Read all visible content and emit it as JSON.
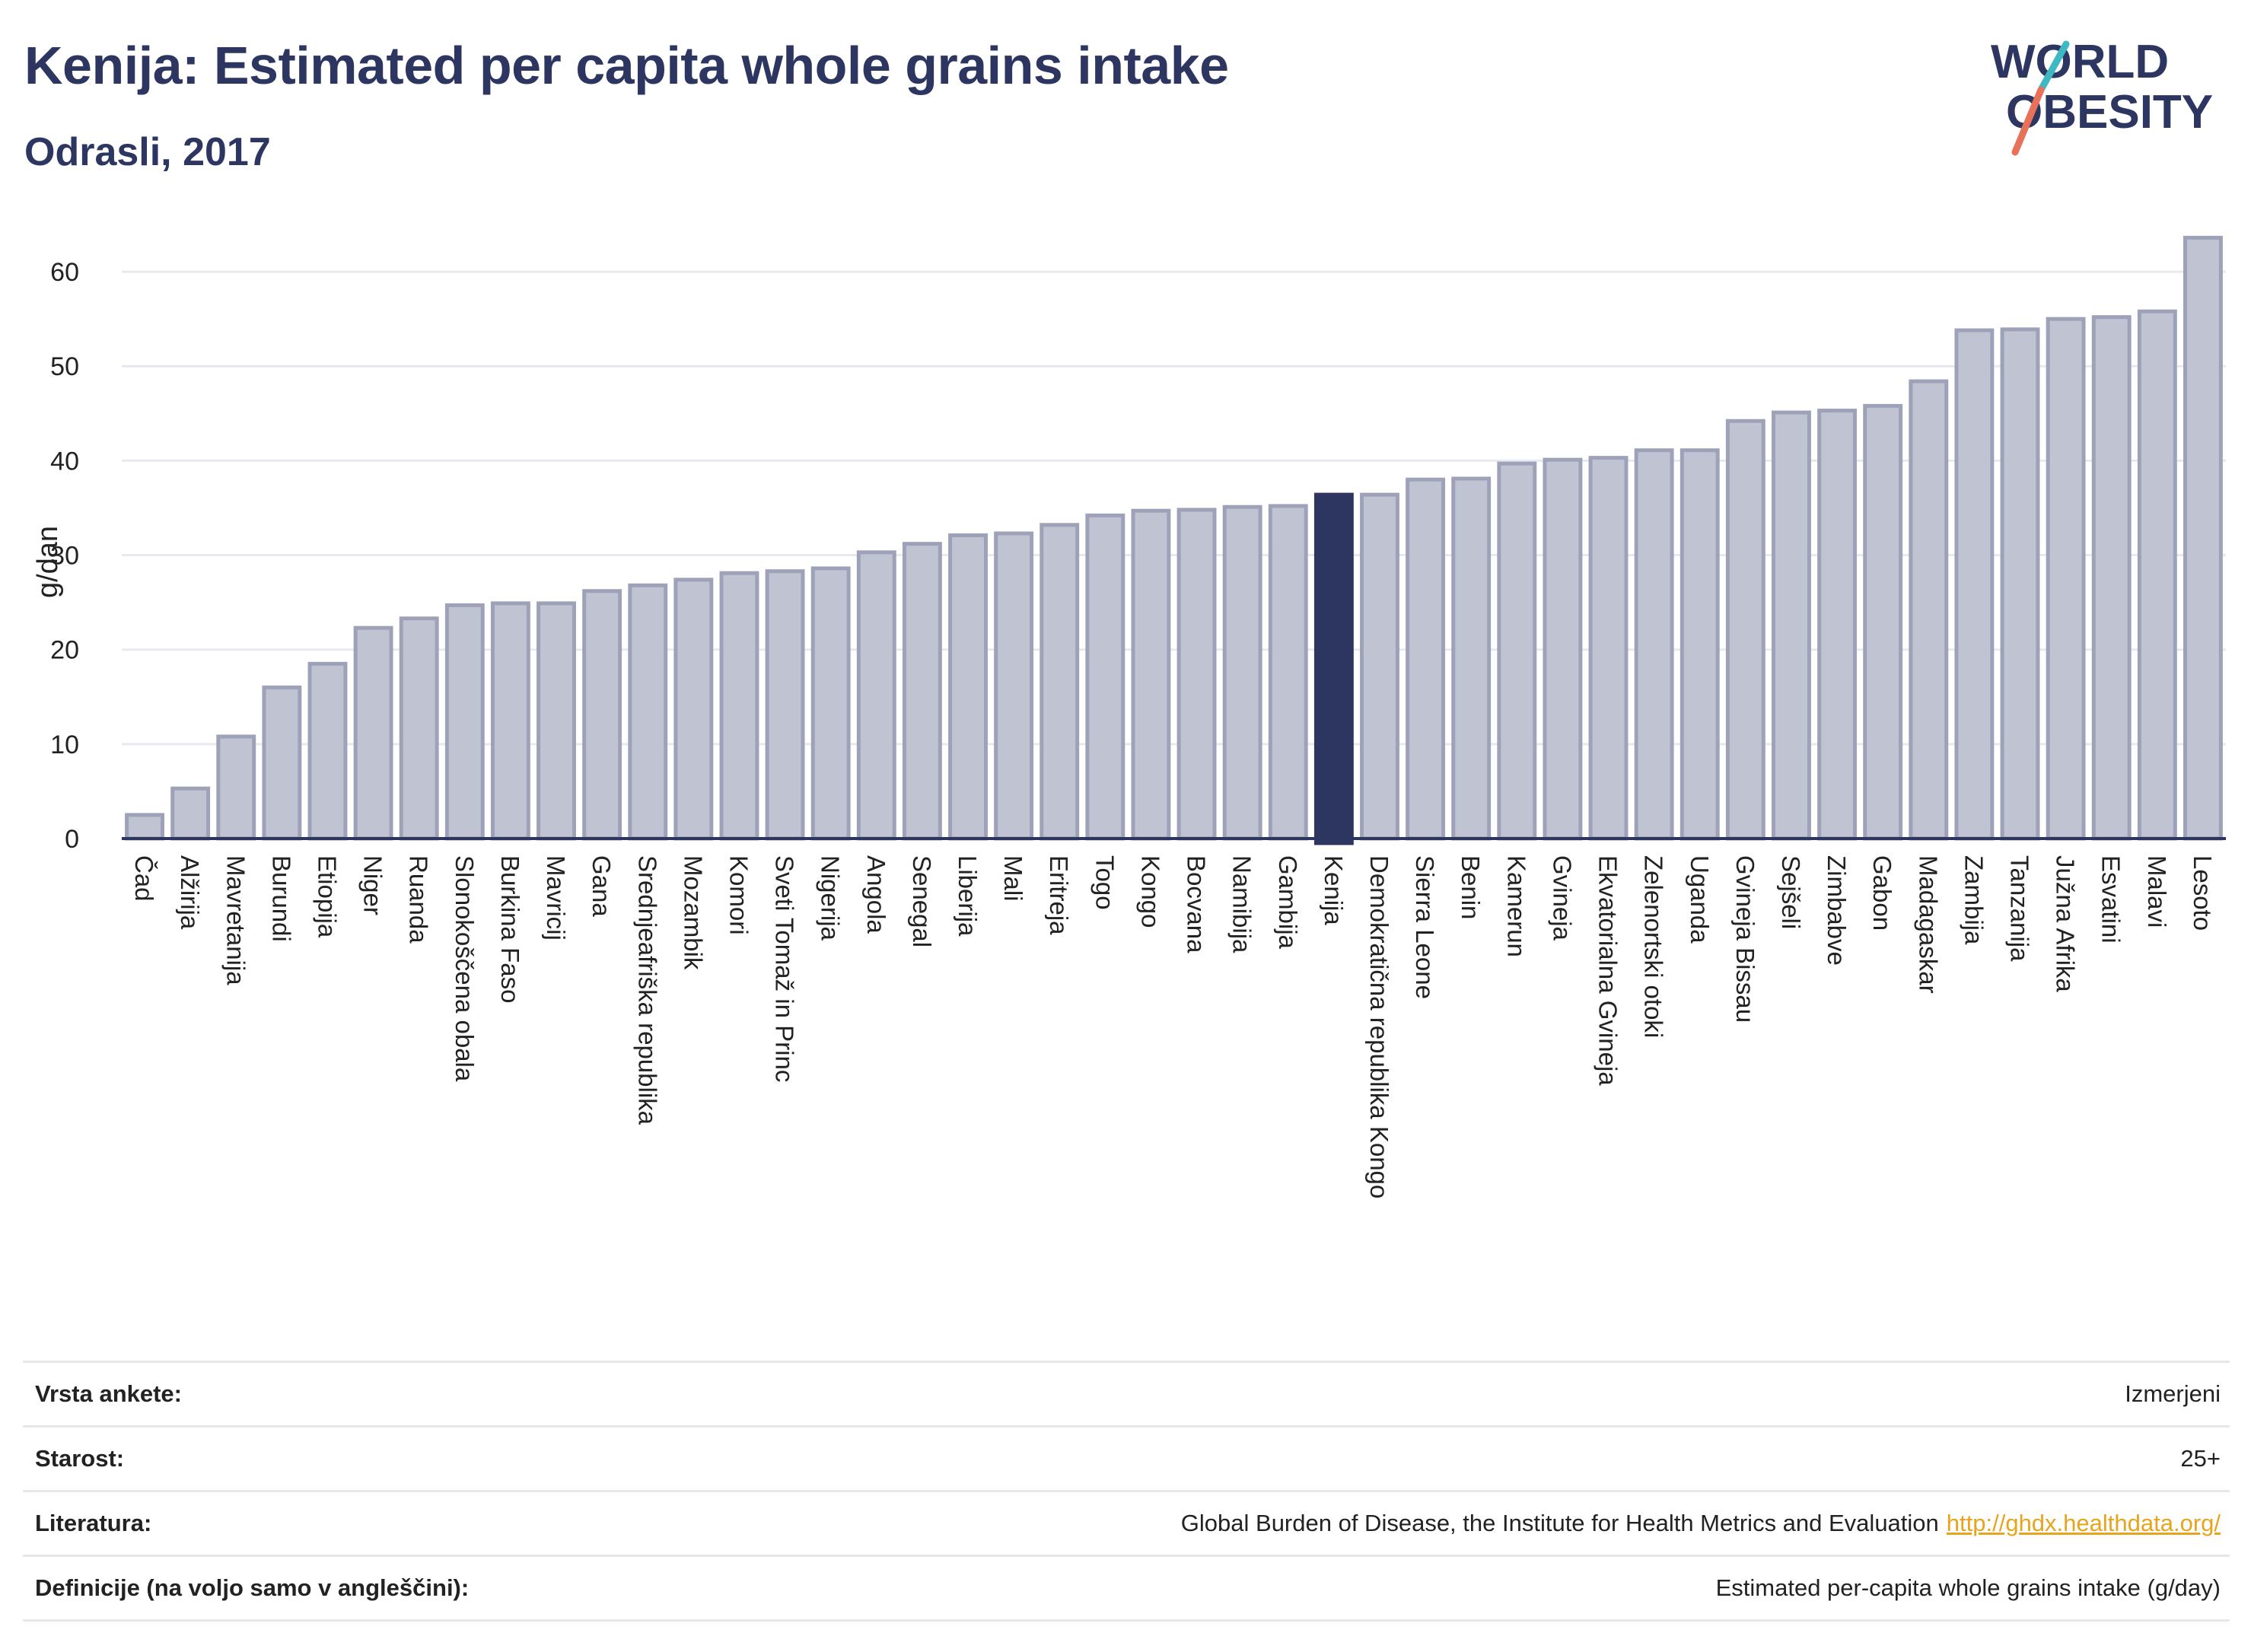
{
  "header": {
    "title": "Kenija: Estimated per capita whole grains intake",
    "subtitle": "Odrasli, 2017"
  },
  "logo": {
    "line1": "WORLD",
    "line2": "OBESITY",
    "icon": "world-obesity-logo"
  },
  "chart_data": {
    "type": "bar",
    "ylabel": "g/dan",
    "ylim": [
      0,
      65
    ],
    "yticks": [
      0,
      10,
      20,
      30,
      40,
      50,
      60
    ],
    "grid": true,
    "highlight": "Kenija",
    "colors": {
      "bar": "#c0c3d2",
      "bar_border": "#9ea2b8",
      "highlight": "#2d3660",
      "grid": "#e8e9ee",
      "axis": "#2d3660"
    },
    "categories": [
      "Čad",
      "Alžirija",
      "Mavretanija",
      "Burundi",
      "Etiopija",
      "Niger",
      "Ruanda",
      "Slonokoščena obala",
      "Burkina Faso",
      "Mavricij",
      "Gana",
      "Srednjeafriška republika",
      "Mozambik",
      "Komori",
      "Sveti Tomaž in Princ",
      "Nigerija",
      "Angola",
      "Senegal",
      "Liberija",
      "Mali",
      "Eritreja",
      "Togo",
      "Kongo",
      "Bocvana",
      "Namibija",
      "Gambija",
      "Kenija",
      "Demokratična republika Kongo",
      "Sierra Leone",
      "Benin",
      "Kamerun",
      "Gvineja",
      "Ekvatorialna Gvineja",
      "Zelenortski otoki",
      "Uganda",
      "Gvineja Bissau",
      "Sejšeli",
      "Zimbabve",
      "Gabon",
      "Madagaskar",
      "Zambija",
      "Tanzanija",
      "Južna Afrika",
      "Esvatini",
      "Malavi",
      "Lesoto"
    ],
    "values": [
      2.5,
      5.3,
      10.8,
      16,
      18.5,
      22.3,
      23.3,
      24.7,
      24.9,
      24.9,
      26.2,
      26.8,
      27.4,
      28.1,
      28.3,
      28.6,
      30.3,
      31.2,
      32.1,
      32.3,
      33.2,
      34.2,
      34.7,
      34.8,
      35.1,
      35.2,
      36.4,
      36.4,
      38,
      38.1,
      39.7,
      40.1,
      40.3,
      41.1,
      41.1,
      44.2,
      45.1,
      45.3,
      45.8,
      48.4,
      53.8,
      53.9,
      55,
      55.2,
      55.8,
      63.6
    ]
  },
  "footer": {
    "rows": [
      {
        "label": "Vrsta ankete:",
        "value": "Izmerjeni"
      },
      {
        "label": "Starost:",
        "value": "25+"
      },
      {
        "label": "Literatura:",
        "value": "Global Burden of Disease, the Institute for Health Metrics and Evaluation",
        "link": "http://ghdx.healthdata.org/"
      },
      {
        "label": "Definicije (na voljo samo v angleščini):",
        "value": "Estimated per-capita whole grains intake (g/day)"
      }
    ]
  }
}
